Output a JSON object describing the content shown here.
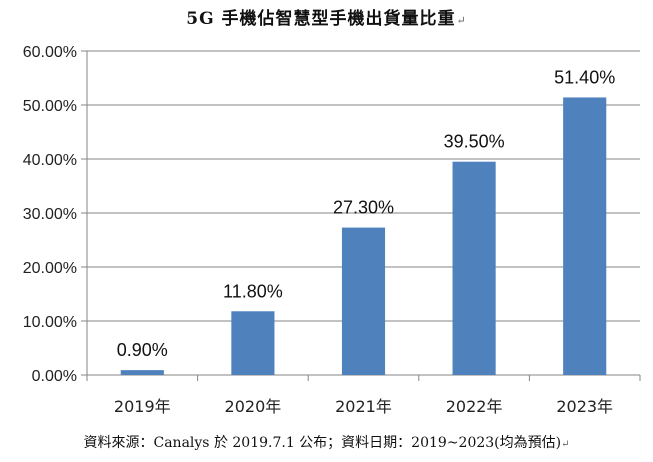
{
  "chart_data": {
    "type": "bar",
    "title": "5G 手機佔智慧型手機出貨量比重",
    "categories": [
      "2019年",
      "2020年",
      "2021年",
      "2022年",
      "2023年"
    ],
    "values": [
      0.9,
      11.8,
      27.3,
      39.5,
      51.4
    ],
    "data_labels": [
      "0.90%",
      "11.80%",
      "27.30%",
      "39.50%",
      "51.40%"
    ],
    "y_ticks": [
      "0.00%",
      "10.00%",
      "20.00%",
      "30.00%",
      "40.00%",
      "50.00%",
      "60.00%"
    ],
    "ylim": [
      0,
      60
    ],
    "y_step": 10,
    "grid": true,
    "bar_color": "#4F81BD",
    "grid_color": "#868686",
    "xlabel": "",
    "ylabel": ""
  },
  "source_note": "資料來源：Canalys 於 2019.7.1 公布；資料日期：2019~2023(均為預估)"
}
